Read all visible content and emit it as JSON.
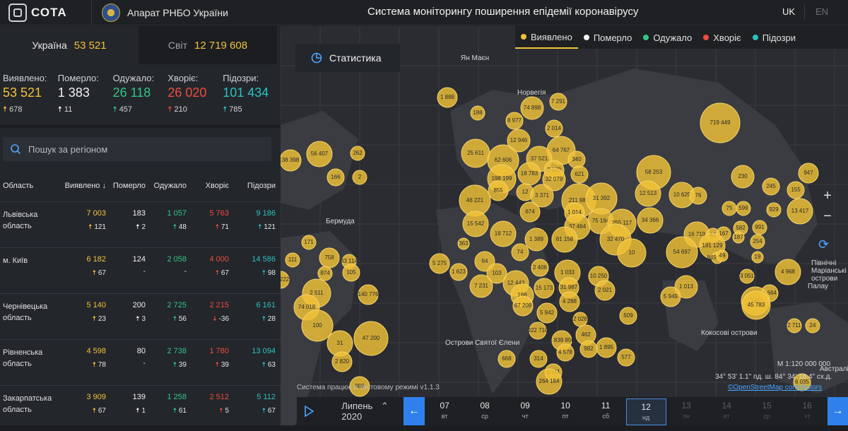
{
  "header": {
    "logo_text": "СОТА",
    "org_name": "Апарат РНБО України",
    "title": "Система моніторингу поширення епідемії коронавірусу",
    "lang_uk": "UK",
    "lang_en": "EN"
  },
  "country_tabs": [
    {
      "label": "Україна",
      "value": "53 521"
    },
    {
      "label": "Світ",
      "value": "12 719 608"
    }
  ],
  "summary": [
    {
      "label": "Виявлено:",
      "value": "53 521",
      "delta": "678"
    },
    {
      "label": "Померло:",
      "value": "1 383",
      "delta": "11"
    },
    {
      "label": "Одужало:",
      "value": "26 118",
      "delta": "457"
    },
    {
      "label": "Хворіє:",
      "value": "26 020",
      "delta": "210"
    },
    {
      "label": "Підозри:",
      "value": "101 434",
      "delta": "785"
    }
  ],
  "search": {
    "placeholder": "Пошук за регіоном"
  },
  "table": {
    "headers": [
      "Область",
      "Виявлено ↓",
      "Померло",
      "Одужало",
      "Хворіє",
      "Підозри"
    ],
    "rows": [
      {
        "region": "Львівська область",
        "detected": "7 003",
        "detected_d": "121",
        "died": "183",
        "died_d": "2",
        "recovered": "1 057",
        "recovered_d": "48",
        "sick": "5 763",
        "sick_d": "71",
        "suspected": "9 186",
        "suspected_d": "121"
      },
      {
        "region": "м. Київ",
        "detected": "6 182",
        "detected_d": "67",
        "died": "124",
        "died_d": "-",
        "recovered": "2 058",
        "recovered_d": "-",
        "sick": "4 000",
        "sick_d": "67",
        "suspected": "14 586",
        "suspected_d": "98"
      },
      {
        "region": "Чернівецька область",
        "detected": "5 140",
        "detected_d": "23",
        "died": "200",
        "died_d": "3",
        "recovered": "2 725",
        "recovered_d": "56",
        "sick": "2 215",
        "sick_d": "-36",
        "suspected": "6 161",
        "suspected_d": "28"
      },
      {
        "region": "Рівненська область",
        "detected": "4 598",
        "detected_d": "78",
        "died": "80",
        "died_d": "-",
        "recovered": "2 738",
        "recovered_d": "39",
        "sick": "1 780",
        "sick_d": "39",
        "suspected": "13 094",
        "suspected_d": "63"
      },
      {
        "region": "Закарпатська область",
        "detected": "3 909",
        "detected_d": "67",
        "died": "139",
        "died_d": "1",
        "recovered": "1 258",
        "recovered_d": "61",
        "sick": "2 512",
        "sick_d": "5",
        "suspected": "5 112",
        "suspected_d": "67"
      }
    ]
  },
  "map": {
    "stats_button": "Статистика",
    "legend": [
      "Виявлено",
      "Померло",
      "Одужало",
      "Хворіє",
      "Підозри"
    ],
    "colors": {
      "detected": "#f2c237",
      "died": "#f5f5f5",
      "recovered": "#34c487",
      "sick": "#ee4c3d",
      "suspected": "#2bc2c0",
      "accent": "#2f80ed"
    },
    "places": [
      "Ян Маєн",
      "Норвегія",
      "Бермуда",
      "Острови Святої Єлени",
      "Кокосові острови",
      "Палау",
      "Північні Маріанські острови",
      "Австралія"
    ],
    "bubbles": [
      "1 888",
      "188",
      "74 898",
      "7 291",
      "8 977",
      "2 014",
      "719 449",
      "56 407",
      "262",
      "38 398",
      "25 611",
      "12 946",
      "64 767",
      "37 521",
      "166",
      "2",
      "62 606",
      "340",
      "3 029",
      "18 783",
      "32 079",
      "621",
      "198 199",
      "58 253",
      "230",
      "947",
      "855",
      "12",
      "3 371",
      "211 981",
      "31 392",
      "12 513",
      "10 629",
      "76",
      "245",
      "155",
      "46 221",
      "674",
      "1 014",
      "75 194",
      "255 117",
      "929",
      "13 417",
      "15 542",
      "37 464",
      "34 366",
      "16 719",
      "82",
      "167",
      "75",
      "599",
      "582",
      "991",
      "18 712",
      "1 389",
      "81 158",
      "32 470",
      "181 129",
      "187",
      "254",
      "363",
      "10",
      "54 697",
      "849 522",
      "49",
      "19",
      "171",
      "111",
      "758",
      "43 114",
      "74",
      "5 275",
      "1 623",
      "64",
      "2 406",
      "874",
      "105",
      "103",
      "1 033",
      "10 250",
      "4 968",
      "54 222",
      "7 231",
      "12 443",
      "31 987",
      "2 021",
      "3 051",
      "186",
      "15 173",
      "4 288",
      "1 013",
      "2 511",
      "140 776",
      "5 949",
      "2 664",
      "141",
      "45 783",
      "74 018",
      "67 209",
      "5 942",
      "2 028",
      "509",
      "100",
      "322 710",
      "462",
      "2 711",
      "24",
      "31",
      "47 200",
      "1 839 850",
      "1 895",
      "4 578",
      "982",
      "577",
      "668",
      "314",
      "2 820",
      "1 311",
      "264 184",
      "986",
      "6 035",
      "21"
    ],
    "footer_note": "Система працює в тестовому режимі v1.1.3",
    "scale": "М 1:120 000 000",
    "coords": "34° 53' 1.1\" пд. ш.   84° 34' 16.4\" сх.д.",
    "osm": "©OpenStreetMap contributors"
  },
  "timeline": {
    "month": "Липень",
    "year": "2020",
    "days": [
      {
        "d": "07",
        "w": "вт"
      },
      {
        "d": "08",
        "w": "ср"
      },
      {
        "d": "09",
        "w": "чт"
      },
      {
        "d": "10",
        "w": "пт"
      },
      {
        "d": "11",
        "w": "сб"
      },
      {
        "d": "12",
        "w": "нд"
      },
      {
        "d": "13",
        "w": "пн"
      },
      {
        "d": "14",
        "w": "вт"
      },
      {
        "d": "15",
        "w": "ср"
      },
      {
        "d": "16",
        "w": "чт"
      }
    ],
    "active_index": 5
  }
}
